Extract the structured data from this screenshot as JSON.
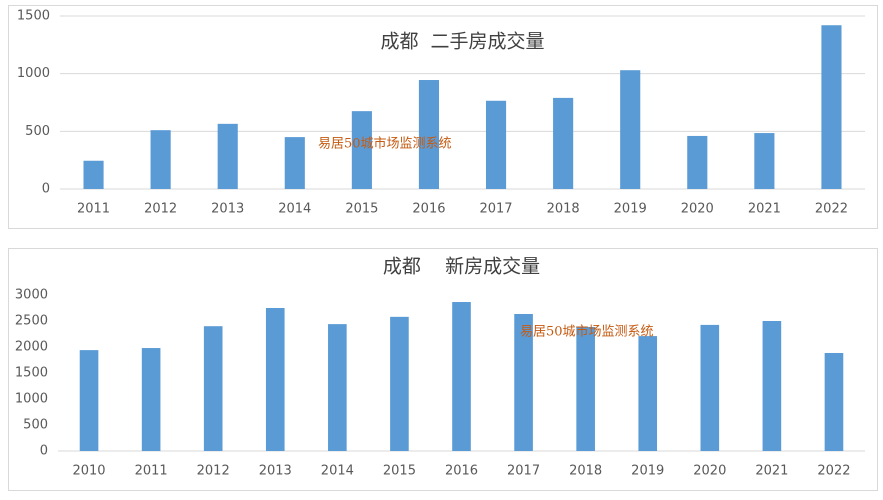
{
  "chart_data": [
    {
      "type": "bar",
      "title": "成都  二手房成交量",
      "annotation": "易居50城市场监测系统",
      "categories": [
        "2011",
        "2012",
        "2013",
        "2014",
        "2015",
        "2016",
        "2017",
        "2018",
        "2019",
        "2020",
        "2021",
        "2022"
      ],
      "values": [
        245,
        510,
        565,
        450,
        675,
        945,
        765,
        790,
        1030,
        460,
        485,
        1420
      ],
      "color": "#5b9bd5",
      "ylim": [
        0,
        1500
      ],
      "yticks": [
        0,
        500,
        1000,
        1500
      ],
      "grid": true
    },
    {
      "type": "bar",
      "title": "成都    新房成交量",
      "annotation": "易居50城市场监测系统",
      "categories": [
        "2010",
        "2011",
        "2012",
        "2013",
        "2014",
        "2015",
        "2016",
        "2017",
        "2018",
        "2019",
        "2020",
        "2021",
        "2022"
      ],
      "values": [
        1940,
        1980,
        2400,
        2750,
        2440,
        2580,
        2865,
        2635,
        2385,
        2210,
        2425,
        2500,
        1885
      ],
      "color": "#5b9bd5",
      "ylim": [
        0,
        3000
      ],
      "yticks": [
        0,
        500,
        1000,
        1500,
        2000,
        2500,
        3000
      ],
      "grid": false
    }
  ]
}
